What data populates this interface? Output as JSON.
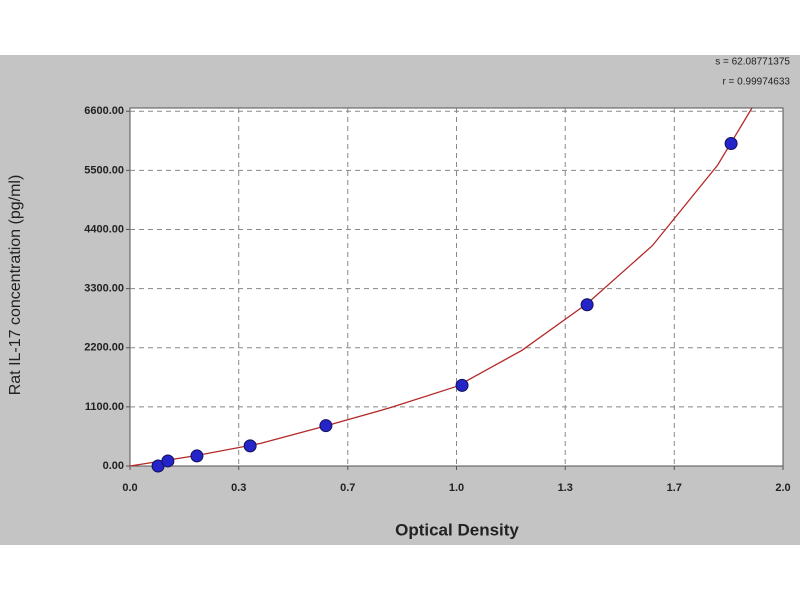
{
  "chart_data": {
    "type": "scatter",
    "xlabel": "Optical Density",
    "ylabel": "Rat IL-17 concentration (pg/ml)",
    "annotations": [
      "s = 62.08771375",
      "r = 0.99974633"
    ],
    "xlim": [
      0,
      2
    ],
    "ylim": [
      0,
      6660
    ],
    "xticks": [
      {
        "value": 0,
        "label": "0.0"
      },
      {
        "value": 0.333,
        "label": "0.3"
      },
      {
        "value": 0.667,
        "label": "0.7"
      },
      {
        "value": 1,
        "label": "1.0"
      },
      {
        "value": 1.333,
        "label": "1.3"
      },
      {
        "value": 1.667,
        "label": "1.7"
      },
      {
        "value": 2,
        "label": "2.0"
      }
    ],
    "yticks": [
      {
        "value": 0,
        "label": "0.00"
      },
      {
        "value": 1100,
        "label": "1100.00"
      },
      {
        "value": 2200,
        "label": "2200.00"
      },
      {
        "value": 3300,
        "label": "3300.00"
      },
      {
        "value": 4400,
        "label": "4400.00"
      },
      {
        "value": 5500,
        "label": "5500.00"
      },
      {
        "value": 6600,
        "label": "6600.00"
      }
    ],
    "grid": true,
    "series": [
      {
        "kind": "points",
        "color": "#2424c8",
        "x": [
          0.086,
          0.116,
          0.205,
          0.368,
          0.6,
          1.017,
          1.4,
          1.841
        ],
        "values": [
          0,
          93.75,
          187.5,
          375,
          750,
          1500,
          3000,
          6000
        ]
      },
      {
        "kind": "curve",
        "color": "#b42828",
        "x": [
          0,
          0.2,
          0.4,
          0.6,
          0.8,
          1.0,
          1.2,
          1.4,
          1.6,
          1.8,
          1.905
        ],
        "values": [
          0,
          190,
          420,
          746,
          1090,
          1480,
          2150,
          3020,
          4100,
          5600,
          6660
        ]
      }
    ]
  }
}
